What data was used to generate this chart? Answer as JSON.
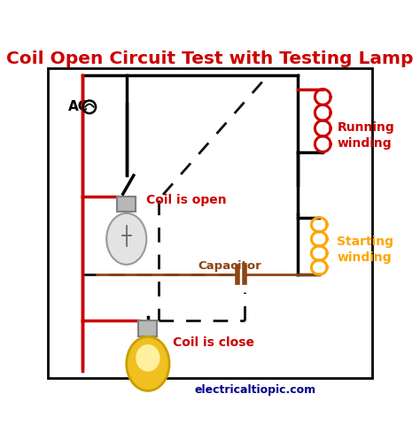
{
  "title": "Coil Open Circuit Test with Testing Lamp",
  "title_color": "#cc0000",
  "title_fontsize": 14.5,
  "bg_color": "#ffffff",
  "border_color": "#000000",
  "watermark": "electricaltiopic.com",
  "watermark_color": "#00008b",
  "ac_label": "AC",
  "running_label": "Running\nwinding",
  "starting_label": "Starting\nwinding",
  "capacitor_label": "Capacitor",
  "coil_open_label": "Coil is open",
  "coil_close_label": "Coil is close",
  "red_color": "#cc0000",
  "orange_color": "#FFA500",
  "brown_color": "#8B4513",
  "black_color": "#000000",
  "dashed_color": "#111111",
  "gray_color": "#a0a0a0"
}
